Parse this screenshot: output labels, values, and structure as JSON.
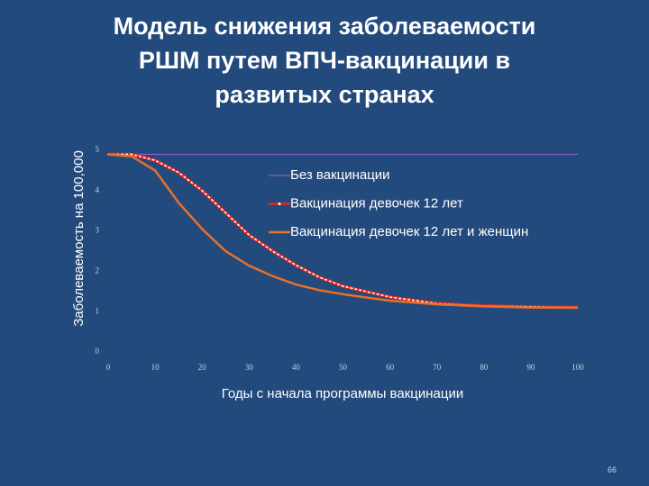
{
  "chart_data": {
    "type": "line",
    "title": "Модель снижения заболеваемости РШМ путем ВПЧ-вакцинации в развитых странах",
    "x_label": "Годы с начала программы вакцинации",
    "y_label": "Заболеваемость на 100,000",
    "x": [
      0,
      5,
      10,
      15,
      20,
      25,
      30,
      35,
      40,
      45,
      50,
      60,
      70,
      80,
      90,
      100
    ],
    "series": [
      {
        "name": "Без вакцинации",
        "color": "#8a5cd6",
        "values": [
          4.9,
          4.9,
          4.9,
          4.9,
          4.9,
          4.9,
          4.9,
          4.9,
          4.9,
          4.9,
          4.9,
          4.9,
          4.9,
          4.9,
          4.9,
          4.9
        ]
      },
      {
        "name": "Вакцинация девочек 12 лет",
        "color": "#e3261c",
        "values": [
          4.9,
          4.9,
          4.75,
          4.45,
          4.0,
          3.45,
          2.9,
          2.5,
          2.15,
          1.85,
          1.63,
          1.36,
          1.2,
          1.14,
          1.12,
          1.1
        ]
      },
      {
        "name": "Вакцинация девочек 12 лет и женщин",
        "color": "#e8702a",
        "values": [
          4.9,
          4.85,
          4.5,
          3.7,
          3.05,
          2.5,
          2.14,
          1.88,
          1.67,
          1.53,
          1.43,
          1.27,
          1.18,
          1.13,
          1.1,
          1.1
        ]
      }
    ],
    "xlim": [
      0,
      100
    ],
    "xticks": [
      0,
      10,
      20,
      30,
      40,
      50,
      60,
      70,
      80,
      90,
      100
    ],
    "ylim": [
      0,
      5
    ],
    "yticks": [
      0,
      1,
      2,
      3,
      4,
      5
    ],
    "legend": "right"
  },
  "page_number": "66"
}
